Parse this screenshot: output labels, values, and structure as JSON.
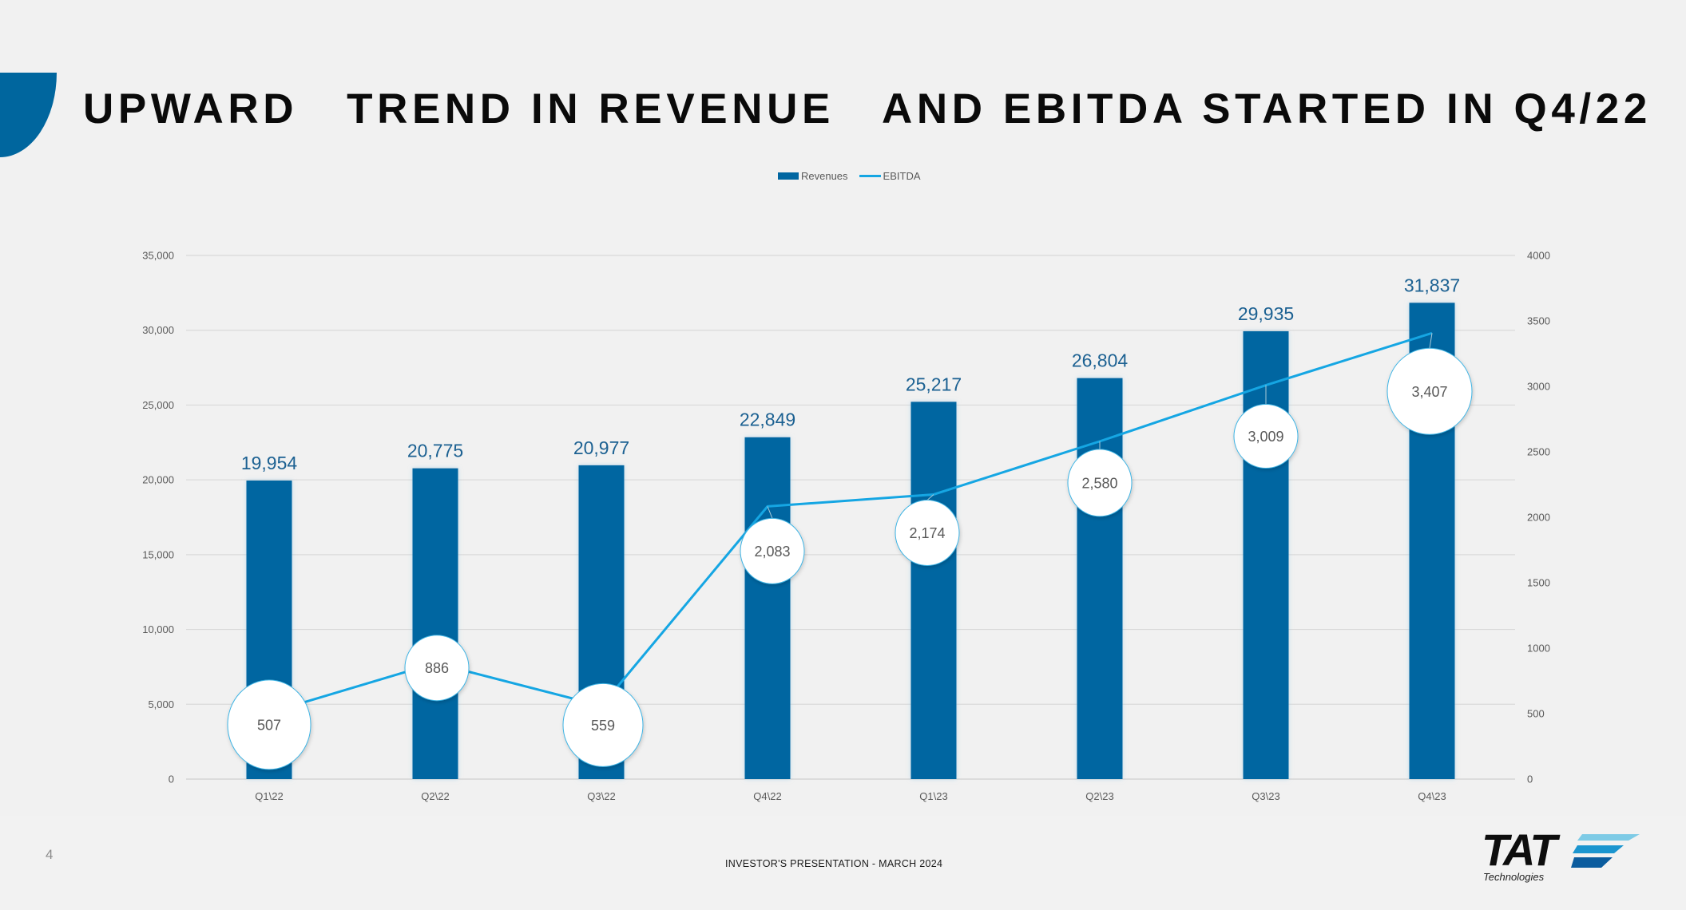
{
  "slide": {
    "title": "UPWARD   TREND IN REVENUE   AND EBITDA STARTED IN Q4/22",
    "page_number": "4",
    "footer_text": "INVESTOR'S PRESENTATION - MARCH 2024",
    "logo": {
      "main": "TAT",
      "sub": "Technologies"
    }
  },
  "colors": {
    "revenues": "#0066a1",
    "ebitda": "#15a6e3",
    "value_label": "#1c6192",
    "accent": "#00669e"
  },
  "chart_data": {
    "type": "bar",
    "title": "",
    "categories": [
      "Q1\\22",
      "Q2\\22",
      "Q3\\22",
      "Q4\\22",
      "Q1\\23",
      "Q2\\23",
      "Q3\\23",
      "Q4\\23"
    ],
    "series": [
      {
        "name": "Revenues",
        "type": "bar",
        "axis": "left",
        "values": [
          19954,
          20775,
          20977,
          22849,
          25217,
          26804,
          29935,
          31837
        ],
        "labels": [
          "19,954",
          "20,775",
          "20,977",
          "22,849",
          "25,217",
          "26,804",
          "29,935",
          "31,837"
        ]
      },
      {
        "name": "EBITDA",
        "type": "line",
        "axis": "right",
        "values": [
          507,
          886,
          559,
          2083,
          2174,
          2580,
          3009,
          3407
        ],
        "labels": [
          "507",
          "886",
          "559",
          "2,083",
          "2,174",
          "2,580",
          "3,009",
          "3,407"
        ]
      }
    ],
    "legend": {
      "position": "top",
      "entries": [
        "Revenues",
        "EBITDA"
      ]
    },
    "left_axis": {
      "range": [
        0,
        35000
      ],
      "ticks": [
        "0",
        "5,000",
        "10,000",
        "15,000",
        "20,000",
        "25,000",
        "30,000",
        "35,000"
      ]
    },
    "right_axis": {
      "range": [
        0,
        4000
      ],
      "ticks": [
        "0",
        "500",
        "1000",
        "1500",
        "2000",
        "2500",
        "3000",
        "3500",
        "4000"
      ]
    },
    "grid": true,
    "xlabel": "",
    "ylabel": ""
  }
}
